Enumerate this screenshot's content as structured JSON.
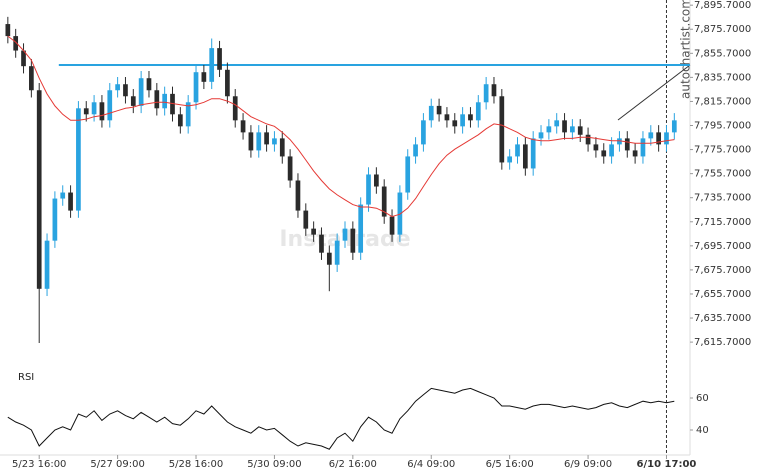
{
  "chart_data": {
    "type": "candlestick",
    "watermark": "autochartist.com",
    "watermark2": "InstaTrade",
    "up_color": "#29a3e0",
    "down_color": "#2b2b2b",
    "ma_color": "#e53935",
    "level_color": "#29a3e0",
    "level": 7846,
    "marker_index": 84,
    "xlim": [
      -1,
      87
    ],
    "xticks": [
      {
        "value": 4,
        "label": "5/23 16:00"
      },
      {
        "value": 14,
        "label": "5/27 09:00"
      },
      {
        "value": 24,
        "label": "5/28 16:00"
      },
      {
        "value": 34,
        "label": "5/30 09:00"
      },
      {
        "value": 44,
        "label": "6/2 16:00"
      },
      {
        "value": 54,
        "label": "6/4 09:00"
      },
      {
        "value": 64,
        "label": "6/5 16:00"
      },
      {
        "value": 74,
        "label": "6/9 09:00"
      },
      {
        "value": 84,
        "label": "6/10 17:00"
      }
    ],
    "ylim": [
      7600,
      7900
    ],
    "yticks": [
      {
        "value": 7615.7,
        "label": "7,615.7000"
      },
      {
        "value": 7635.7,
        "label": "7,635.7000"
      },
      {
        "value": 7655.7,
        "label": "7,655.7000"
      },
      {
        "value": 7675.7,
        "label": "7,675.7000"
      },
      {
        "value": 7695.7,
        "label": "7,695.7000"
      },
      {
        "value": 7715.7,
        "label": "7,715.7000"
      },
      {
        "value": 7735.7,
        "label": "7,735.7000"
      },
      {
        "value": 7755.7,
        "label": "7,755.7000"
      },
      {
        "value": 7775.7,
        "label": "7,775.7000"
      },
      {
        "value": 7795.7,
        "label": "7,795.7000"
      },
      {
        "value": 7815.7,
        "label": "7,815.7000"
      },
      {
        "value": 7835.7,
        "label": "7,835.7000"
      },
      {
        "value": 7855.7,
        "label": "7,855.7000"
      },
      {
        "value": 7875.7,
        "label": "7,875.7000"
      },
      {
        "value": 7895.7,
        "label": "7,895.7000"
      }
    ],
    "open": [
      7880,
      7870,
      7858,
      7845,
      7825,
      7660,
      7700,
      7735,
      7740,
      7725,
      7810,
      7805,
      7815,
      7800,
      7825,
      7830,
      7820,
      7812,
      7835,
      7825,
      7810,
      7822,
      7805,
      7795,
      7815,
      7840,
      7832,
      7860,
      7842,
      7820,
      7800,
      7790,
      7775,
      7790,
      7780,
      7785,
      7770,
      7750,
      7725,
      7710,
      7705,
      7690,
      7680,
      7700,
      7710,
      7690,
      7730,
      7755,
      7745,
      7720,
      7705,
      7740,
      7770,
      7780,
      7800,
      7812,
      7805,
      7800,
      7795,
      7805,
      7800,
      7815,
      7830,
      7820,
      7765,
      7770,
      7780,
      7760,
      7785,
      7790,
      7795,
      7800,
      7790,
      7795,
      7788,
      7780,
      7775,
      7770,
      7780,
      7785,
      7775,
      7770,
      7785,
      7790,
      7780,
      7790
    ],
    "high": [
      7886,
      7876,
      7864,
      7851,
      7831,
      7706,
      7741,
      7746,
      7746,
      7816,
      7816,
      7821,
      7821,
      7831,
      7836,
      7836,
      7826,
      7841,
      7841,
      7831,
      7828,
      7828,
      7811,
      7821,
      7846,
      7846,
      7868,
      7866,
      7848,
      7826,
      7806,
      7796,
      7796,
      7796,
      7791,
      7791,
      7776,
      7756,
      7731,
      7716,
      7711,
      7696,
      7706,
      7716,
      7716,
      7736,
      7761,
      7761,
      7751,
      7726,
      7746,
      7776,
      7786,
      7806,
      7818,
      7818,
      7811,
      7806,
      7811,
      7811,
      7821,
      7836,
      7836,
      7826,
      7776,
      7786,
      7786,
      7791,
      7796,
      7801,
      7806,
      7806,
      7801,
      7801,
      7794,
      7786,
      7781,
      7786,
      7791,
      7791,
      7781,
      7791,
      7796,
      7796,
      7796,
      7806
    ],
    "low": [
      7864,
      7852,
      7839,
      7819,
      7615,
      7654,
      7694,
      7729,
      7719,
      7719,
      7799,
      7799,
      7794,
      7794,
      7819,
      7814,
      7806,
      7806,
      7819,
      7804,
      7804,
      7799,
      7789,
      7789,
      7809,
      7826,
      7826,
      7836,
      7814,
      7794,
      7784,
      7769,
      7769,
      7774,
      7774,
      7764,
      7744,
      7719,
      7704,
      7699,
      7684,
      7658,
      7674,
      7694,
      7684,
      7684,
      7724,
      7739,
      7714,
      7699,
      7699,
      7734,
      7764,
      7774,
      7794,
      7799,
      7794,
      7789,
      7789,
      7794,
      7794,
      7809,
      7814,
      7759,
      7759,
      7764,
      7754,
      7754,
      7779,
      7784,
      7789,
      7784,
      7784,
      7782,
      7774,
      7769,
      7764,
      7764,
      7774,
      7769,
      7764,
      7764,
      7779,
      7774,
      7774,
      7784
    ],
    "close": [
      7870,
      7858,
      7845,
      7825,
      7660,
      7700,
      7735,
      7740,
      7725,
      7810,
      7805,
      7815,
      7800,
      7825,
      7830,
      7820,
      7812,
      7835,
      7825,
      7810,
      7822,
      7805,
      7795,
      7815,
      7840,
      7832,
      7860,
      7842,
      7820,
      7800,
      7790,
      7775,
      7790,
      7780,
      7785,
      7770,
      7750,
      7725,
      7710,
      7705,
      7690,
      7680,
      7700,
      7710,
      7690,
      7730,
      7755,
      7745,
      7720,
      7705,
      7740,
      7770,
      7780,
      7800,
      7812,
      7805,
      7800,
      7795,
      7805,
      7800,
      7815,
      7830,
      7820,
      7765,
      7770,
      7780,
      7760,
      7785,
      7790,
      7795,
      7800,
      7790,
      7795,
      7788,
      7780,
      7775,
      7770,
      7780,
      7785,
      7775,
      7770,
      7785,
      7790,
      7780,
      7790,
      7800
    ],
    "ma": [
      7870,
      7865,
      7858,
      7850,
      7835,
      7822,
      7812,
      7805,
      7800,
      7800,
      7801,
      7803,
      7804,
      7806,
      7808,
      7810,
      7811,
      7813,
      7814,
      7815,
      7815,
      7814,
      7813,
      7812,
      7813,
      7815,
      7818,
      7818,
      7816,
      7813,
      7808,
      7803,
      7800,
      7797,
      7795,
      7790,
      7784,
      7776,
      7767,
      7758,
      7750,
      7743,
      7738,
      7734,
      7730,
      7728,
      7728,
      7727,
      7724,
      7720,
      7722,
      7727,
      7735,
      7745,
      7755,
      7764,
      7771,
      7776,
      7780,
      7784,
      7788,
      7793,
      7797,
      7796,
      7793,
      7790,
      7786,
      7784,
      7783,
      7783,
      7784,
      7785,
      7785,
      7786,
      7786,
      7785,
      7784,
      7783,
      7783,
      7782,
      7781,
      7781,
      7781,
      7782,
      7783,
      7784
    ],
    "rsi": {
      "title": "RSI",
      "color": "#111111",
      "ylim": [
        25,
        85
      ],
      "yticks": [
        40,
        60
      ],
      "values": [
        48,
        45,
        43,
        40,
        30,
        35,
        40,
        42,
        40,
        50,
        48,
        52,
        46,
        50,
        52,
        49,
        47,
        51,
        48,
        45,
        48,
        44,
        43,
        47,
        52,
        50,
        55,
        50,
        45,
        42,
        40,
        38,
        42,
        40,
        41,
        37,
        33,
        30,
        32,
        31,
        30,
        28,
        35,
        38,
        33,
        42,
        48,
        45,
        40,
        38,
        47,
        52,
        58,
        62,
        66,
        65,
        64,
        63,
        65,
        66,
        64,
        62,
        60,
        55,
        55,
        54,
        53,
        55,
        56,
        56,
        55,
        54,
        55,
        54,
        53,
        54,
        56,
        57,
        55,
        54,
        56,
        58,
        57,
        58,
        57,
        58
      ]
    }
  }
}
